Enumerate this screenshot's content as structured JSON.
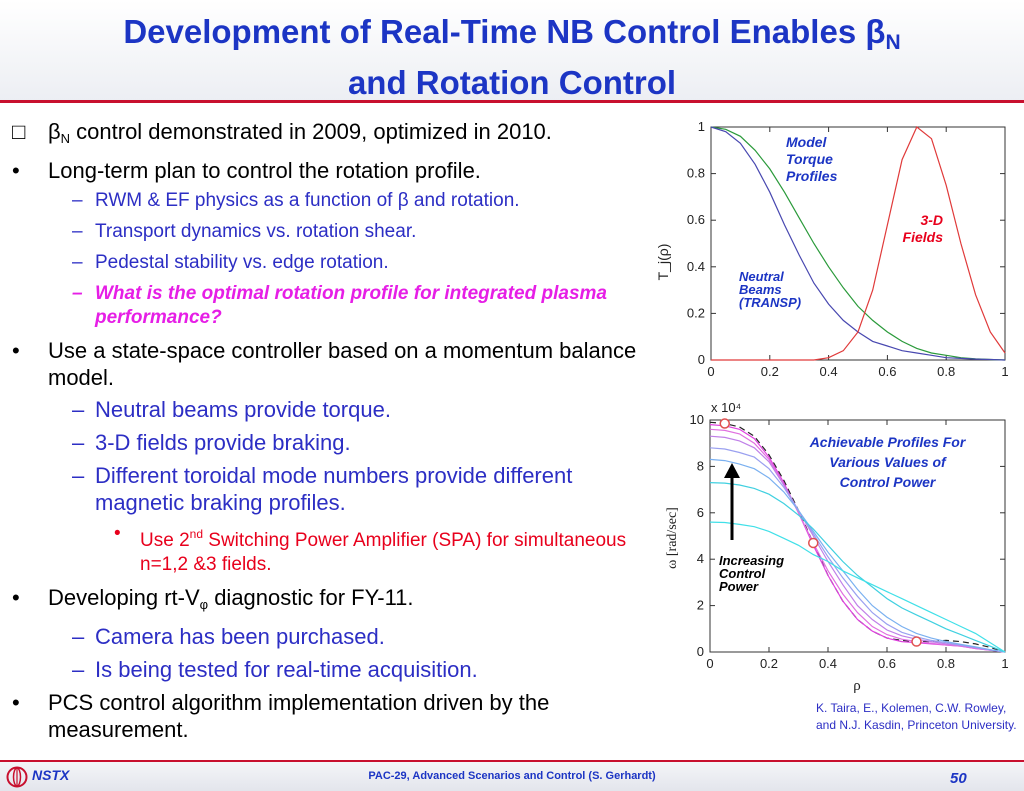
{
  "header": {
    "title_line1": "Development of Real-Time NB Control Enables β",
    "title_sub": "N",
    "title_line2": "and Rotation Control"
  },
  "bullets": {
    "b1_marker": "□",
    "b1_beta": "β",
    "b1_sub": "N",
    "b1_text": " control demonstrated in 2009, optimized in 2010.",
    "b2_marker": "•",
    "b2_text": "Long-term plan to control the rotation profile.",
    "b2_subs": [
      "RWM & EF physics as a function of β and rotation.",
      "Transport dynamics vs. rotation shear.",
      "Pedestal stability vs. edge rotation.",
      "What is the optimal rotation profile for integrated plasma performance?"
    ],
    "b3_marker": "•",
    "b3_text": "Use a state-space controller based on a momentum balance model.",
    "b3_subs": [
      "Neutral beams provide torque.",
      "3-D fields provide braking.",
      "Different toroidal mode numbers provide different magnetic braking profiles."
    ],
    "b3_subsub_pre": "Use 2",
    "b3_subsub_sup": "nd",
    "b3_subsub_post": " Switching Power Amplifier (SPA) for simultaneous n=1,2 &3 fields.",
    "b4_marker": "•",
    "b4_pre": "Developing rt-V",
    "b4_sub": "φ",
    "b4_post": " diagnostic for FY-11.",
    "b4_subs": [
      "Camera has been purchased.",
      "Is being tested for real-time acquisition."
    ],
    "b5_marker": "•",
    "b5_text": "PCS control algorithm implementation driven by the measurement.",
    "dash": "–",
    "dot": "•"
  },
  "annotations": {
    "model_torque": [
      "Model",
      "Torque",
      "Profiles"
    ],
    "three_d": [
      "3-D",
      "Fields"
    ],
    "neutral_beams": [
      "Neutral",
      "Beams",
      "(TRANSP)"
    ],
    "achievable": [
      "Achievable Profiles For",
      "Various Values of",
      "Control Power"
    ],
    "increasing": [
      "Increasing",
      "Control",
      "Power"
    ]
  },
  "citation": "K. Taira, E., Kolemen, C.W. Rowley, and N.J. Kasdin, Princeton University.",
  "footer": {
    "logo_text": "NSTX",
    "center": "PAC-29, Advanced Scenarios and Control (S. Gerhardt)",
    "page": "50"
  },
  "colors": {
    "title": "#1c35c4",
    "accent_red": "#c8102e",
    "sub_blue": "#2c2ec4",
    "magenta": "#e61ee6",
    "annotation_red": "#e8001c"
  },
  "chart_data": [
    {
      "type": "line",
      "xlabel": "",
      "ylabel": "T_j(ρ)",
      "xlim": [
        0,
        1
      ],
      "ylim": [
        0,
        1
      ],
      "xticks": [
        "0",
        "0.2",
        "0.4",
        "0.6",
        "0.8",
        "1"
      ],
      "yticks": [
        "0",
        "0.2",
        "0.4",
        "0.6",
        "0.8",
        "1"
      ],
      "x": [
        0,
        0.05,
        0.1,
        0.15,
        0.2,
        0.25,
        0.3,
        0.35,
        0.4,
        0.45,
        0.5,
        0.55,
        0.6,
        0.65,
        0.7,
        0.75,
        0.8,
        0.85,
        0.9,
        0.95,
        1.0
      ],
      "series": [
        {
          "color": "#2a9a3a",
          "values": [
            1.0,
            0.99,
            0.96,
            0.9,
            0.82,
            0.72,
            0.61,
            0.5,
            0.4,
            0.31,
            0.23,
            0.17,
            0.12,
            0.08,
            0.05,
            0.03,
            0.02,
            0.01,
            0.005,
            0.002,
            0.0
          ]
        },
        {
          "color": "#4848b0",
          "values": [
            1.0,
            0.98,
            0.93,
            0.84,
            0.72,
            0.58,
            0.45,
            0.33,
            0.24,
            0.17,
            0.12,
            0.08,
            0.06,
            0.04,
            0.03,
            0.02,
            0.01,
            0.007,
            0.004,
            0.002,
            0.0
          ]
        },
        {
          "color": "#e03a3a",
          "values": [
            0.0,
            0.0,
            0.0,
            0.0,
            0.0,
            0.0,
            0.0,
            0.0,
            0.01,
            0.04,
            0.12,
            0.3,
            0.58,
            0.86,
            1.0,
            0.95,
            0.75,
            0.5,
            0.28,
            0.12,
            0.03
          ]
        }
      ]
    },
    {
      "type": "line",
      "xlabel": "ρ",
      "ylabel": "ω [rad/sec]",
      "yscale_label": "x 10⁴",
      "xlim": [
        0,
        1
      ],
      "ylim": [
        0,
        10
      ],
      "xticks": [
        "0",
        "0.2",
        "0.4",
        "0.6",
        "0.8",
        "1"
      ],
      "yticks": [
        "0",
        "2",
        "4",
        "6",
        "8",
        "10"
      ],
      "x": [
        0,
        0.05,
        0.1,
        0.15,
        0.2,
        0.25,
        0.3,
        0.35,
        0.4,
        0.45,
        0.5,
        0.55,
        0.6,
        0.65,
        0.7,
        0.75,
        0.8,
        0.85,
        0.9,
        0.95,
        1.0
      ],
      "series": [
        {
          "color": "#222222",
          "dashed": true,
          "values": [
            9.9,
            9.85,
            9.7,
            9.3,
            8.5,
            7.4,
            6.1,
            4.7,
            3.3,
            2.2,
            1.4,
            0.9,
            0.6,
            0.5,
            0.45,
            0.45,
            0.5,
            0.45,
            0.35,
            0.2,
            0.0
          ]
        },
        {
          "color": "#e040e0",
          "values": [
            9.8,
            9.75,
            9.6,
            9.2,
            8.4,
            7.3,
            6.0,
            4.6,
            3.3,
            2.2,
            1.4,
            0.9,
            0.6,
            0.45,
            0.4,
            0.35,
            0.3,
            0.25,
            0.15,
            0.08,
            0.0
          ]
        },
        {
          "color": "#e070e0",
          "values": [
            9.6,
            9.55,
            9.4,
            9.0,
            8.3,
            7.2,
            6.0,
            4.7,
            3.5,
            2.5,
            1.7,
            1.1,
            0.75,
            0.55,
            0.45,
            0.38,
            0.3,
            0.25,
            0.15,
            0.08,
            0.0
          ]
        },
        {
          "color": "#c080e8",
          "values": [
            9.3,
            9.25,
            9.1,
            8.8,
            8.2,
            7.2,
            6.1,
            5.0,
            3.9,
            2.9,
            2.0,
            1.4,
            0.95,
            0.7,
            0.55,
            0.45,
            0.35,
            0.28,
            0.18,
            0.08,
            0.0
          ]
        },
        {
          "color": "#9aa0f0",
          "values": [
            8.8,
            8.75,
            8.6,
            8.4,
            7.9,
            7.1,
            6.1,
            5.1,
            4.1,
            3.2,
            2.4,
            1.7,
            1.2,
            0.85,
            0.65,
            0.5,
            0.4,
            0.3,
            0.2,
            0.1,
            0.0
          ]
        },
        {
          "color": "#7ab0f0",
          "values": [
            8.3,
            8.25,
            8.1,
            7.9,
            7.5,
            6.9,
            6.1,
            5.2,
            4.3,
            3.5,
            2.7,
            2.0,
            1.5,
            1.1,
            0.8,
            0.6,
            0.45,
            0.33,
            0.22,
            0.1,
            0.0
          ]
        },
        {
          "color": "#40d0e0",
          "values": [
            7.3,
            7.28,
            7.2,
            7.05,
            6.8,
            6.4,
            5.9,
            5.3,
            4.6,
            3.9,
            3.3,
            2.8,
            2.3,
            1.9,
            1.6,
            1.3,
            1.0,
            0.75,
            0.5,
            0.25,
            0.0
          ]
        },
        {
          "color": "#40e0e8",
          "values": [
            5.6,
            5.58,
            5.5,
            5.4,
            5.2,
            4.9,
            4.6,
            4.2,
            3.9,
            3.5,
            3.2,
            2.9,
            2.6,
            2.3,
            2.0,
            1.7,
            1.4,
            1.1,
            0.8,
            0.4,
            0.0
          ]
        }
      ],
      "markers": [
        {
          "x": 0.05,
          "y": 9.85
        },
        {
          "x": 0.35,
          "y": 4.7
        },
        {
          "x": 0.7,
          "y": 0.45
        }
      ]
    }
  ]
}
